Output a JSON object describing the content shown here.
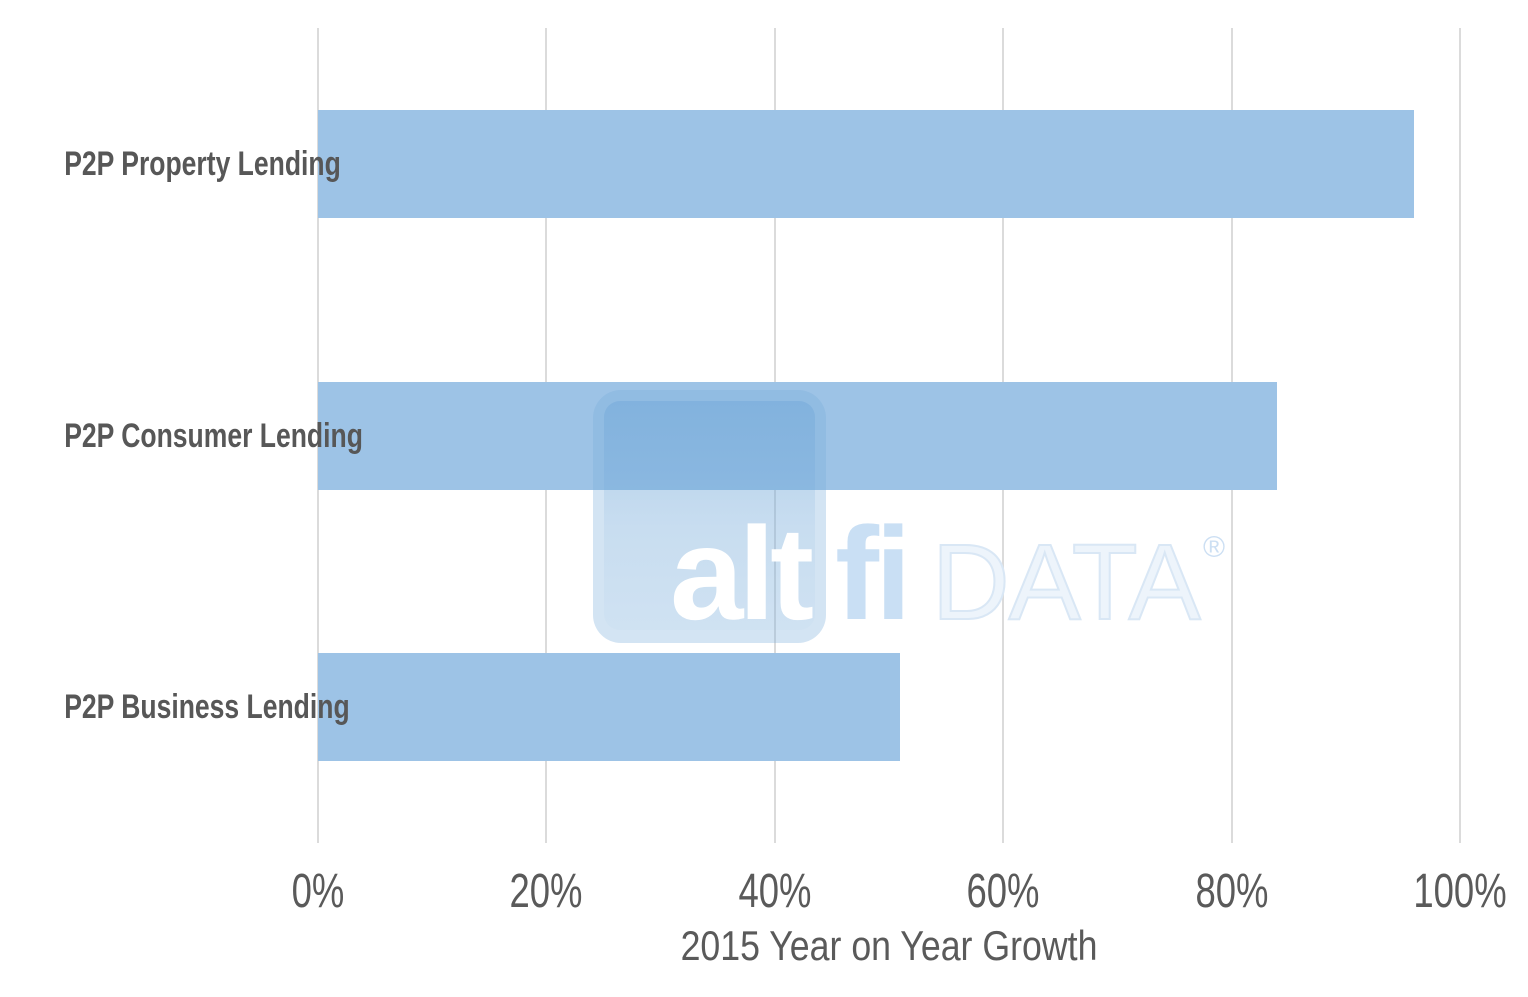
{
  "chart_data": {
    "type": "bar",
    "orientation": "horizontal",
    "title": "",
    "categories": [
      "P2P Property Lending",
      "P2P Consumer Lending",
      "P2P Business Lending"
    ],
    "values": [
      96,
      84,
      51
    ],
    "unit": "%",
    "xlabel": "2015 Year on Year Growth",
    "x_ticks": [
      "0%",
      "20%",
      "40%",
      "60%",
      "80%",
      "100%"
    ],
    "xlim": [
      0,
      100
    ],
    "grid": "vertical-only",
    "legend": "none",
    "bar_color": "#9DC3E6",
    "gridline_color": "#DBDBDB",
    "category_label_color": "#575757",
    "tick_label_color": "#5A5A5A",
    "axis_title_color": "#5A5A5A"
  },
  "watermark": {
    "alt": "alt",
    "fi": "fi",
    "data": "DATA",
    "registered": "®",
    "tile_color": "rgba(120,172,220,0.33)",
    "alt_color": "#FFFFFF",
    "fi_color": "#C9DFF4",
    "data_color": "#EDF4FB"
  }
}
